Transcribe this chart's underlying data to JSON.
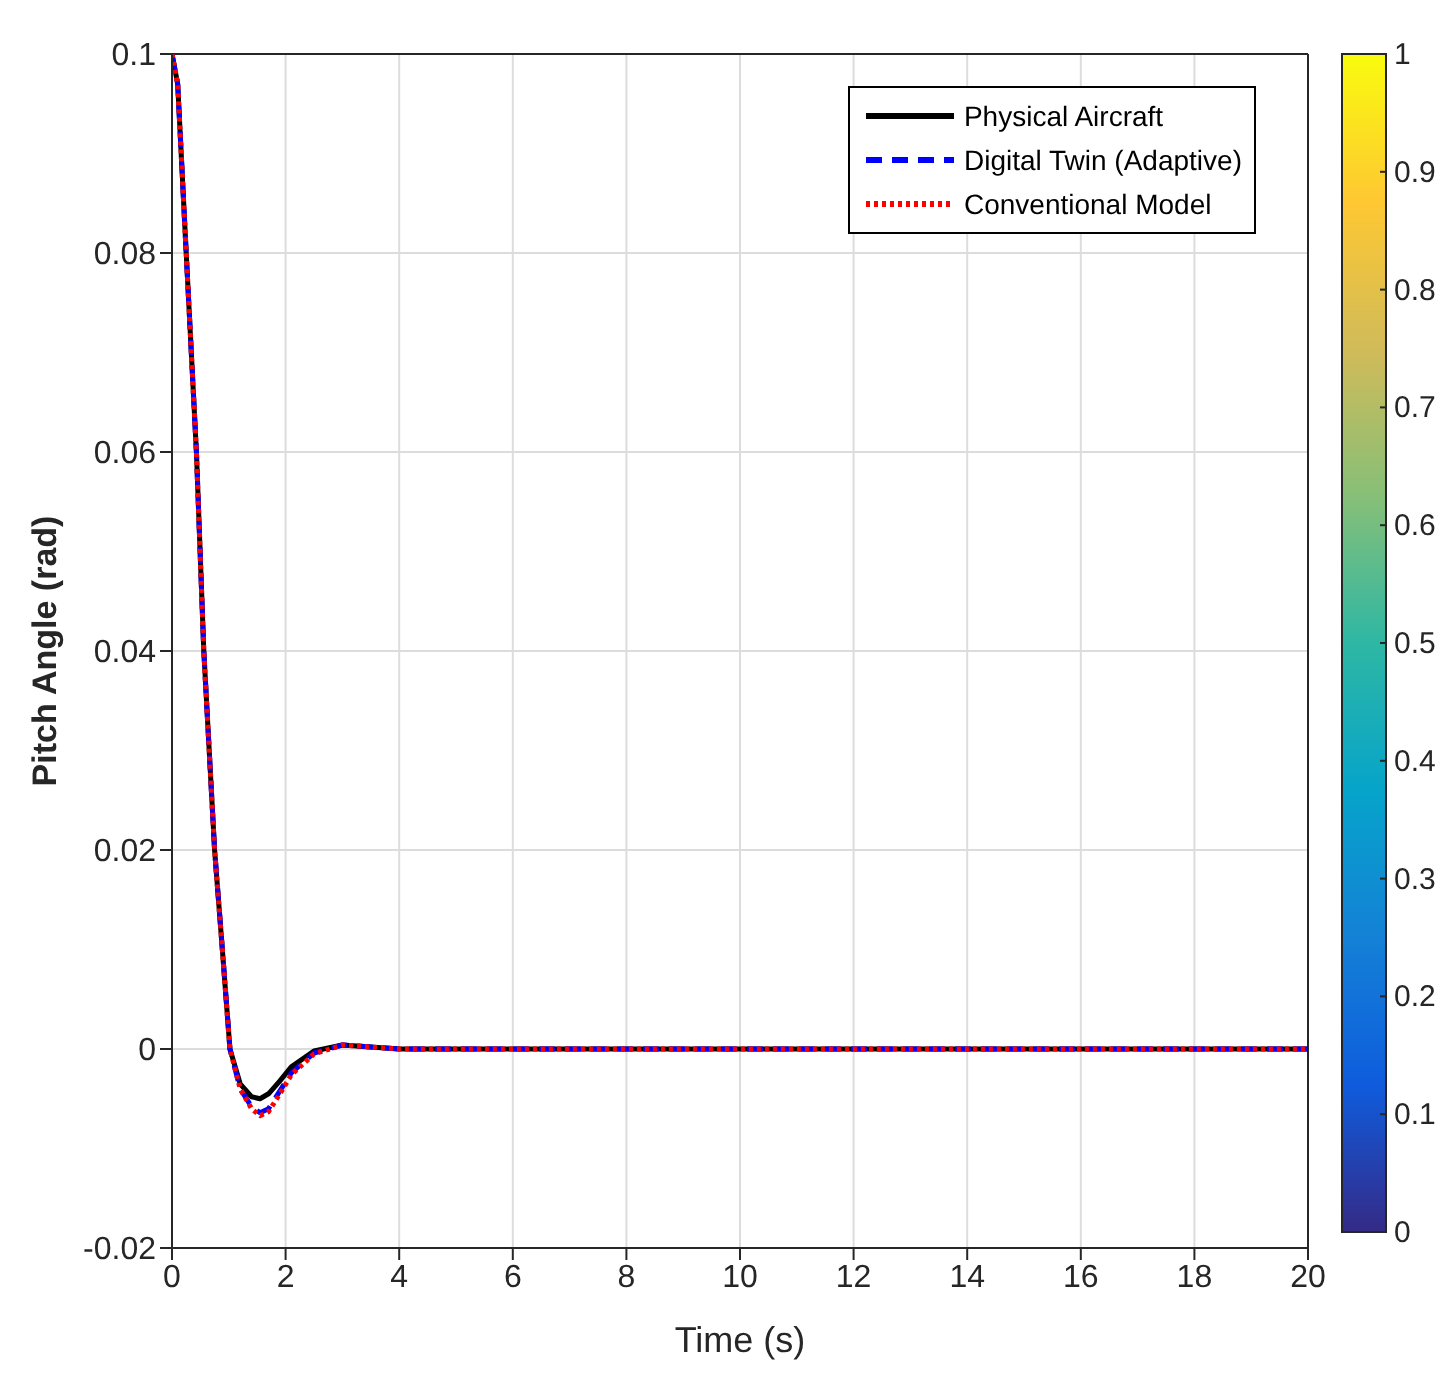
{
  "chart_data": {
    "type": "line",
    "xlabel": "Time (s)",
    "ylabel": "Pitch Angle (rad)",
    "x": [
      0,
      0.1,
      0.25,
      0.43,
      0.56,
      0.75,
      0.9,
      1.02,
      1.2,
      1.4,
      1.55,
      1.7,
      1.9,
      2.1,
      2.5,
      3.0,
      3.5,
      4,
      6,
      8,
      10,
      12,
      14,
      16,
      18,
      20
    ],
    "series": [
      {
        "name": "Physical Aircraft",
        "color": "#000000",
        "line_style": "solid",
        "values": [
          0.1,
          0.097,
          0.08,
          0.06,
          0.04,
          0.02,
          0.009,
          0,
          -0.0035,
          -0.0048,
          -0.005,
          -0.0045,
          -0.0032,
          -0.0018,
          -0.0002,
          0.0004,
          0.0002,
          0,
          0,
          0,
          0,
          0,
          0,
          0,
          0,
          0
        ]
      },
      {
        "name": "Digital Twin (Adaptive)",
        "color": "#0000ff",
        "line_style": "dashed",
        "values": [
          0.1,
          0.097,
          0.08,
          0.06,
          0.04,
          0.02,
          0.009,
          0,
          -0.004,
          -0.0058,
          -0.0064,
          -0.006,
          -0.0042,
          -0.0024,
          -0.0004,
          0.0004,
          0.0002,
          0,
          0,
          0,
          0,
          0,
          0,
          0,
          0,
          0
        ]
      },
      {
        "name": "Conventional Model",
        "color": "#ff0000",
        "line_style": "dotted",
        "values": [
          0.1,
          0.097,
          0.08,
          0.06,
          0.04,
          0.02,
          0.009,
          0,
          -0.004,
          -0.006,
          -0.0067,
          -0.0063,
          -0.0045,
          -0.0026,
          -0.0005,
          0.0004,
          0.0002,
          0,
          0,
          0,
          0,
          0,
          0,
          0,
          0,
          0
        ]
      }
    ],
    "xlim": [
      0,
      20
    ],
    "xticks": [
      0,
      2,
      4,
      6,
      8,
      10,
      12,
      14,
      16,
      18,
      20
    ],
    "ylim": [
      -0.02,
      0.1
    ],
    "yticks": [
      -0.02,
      0,
      0.02,
      0.04,
      0.06,
      0.08,
      0.1
    ],
    "clim": [
      0,
      1
    ],
    "cticks": [
      0,
      0.1,
      0.2,
      0.3,
      0.4,
      0.5,
      0.6,
      0.7,
      0.8,
      0.9,
      1
    ],
    "grid": true,
    "legend": "top right",
    "marker": "none"
  }
}
